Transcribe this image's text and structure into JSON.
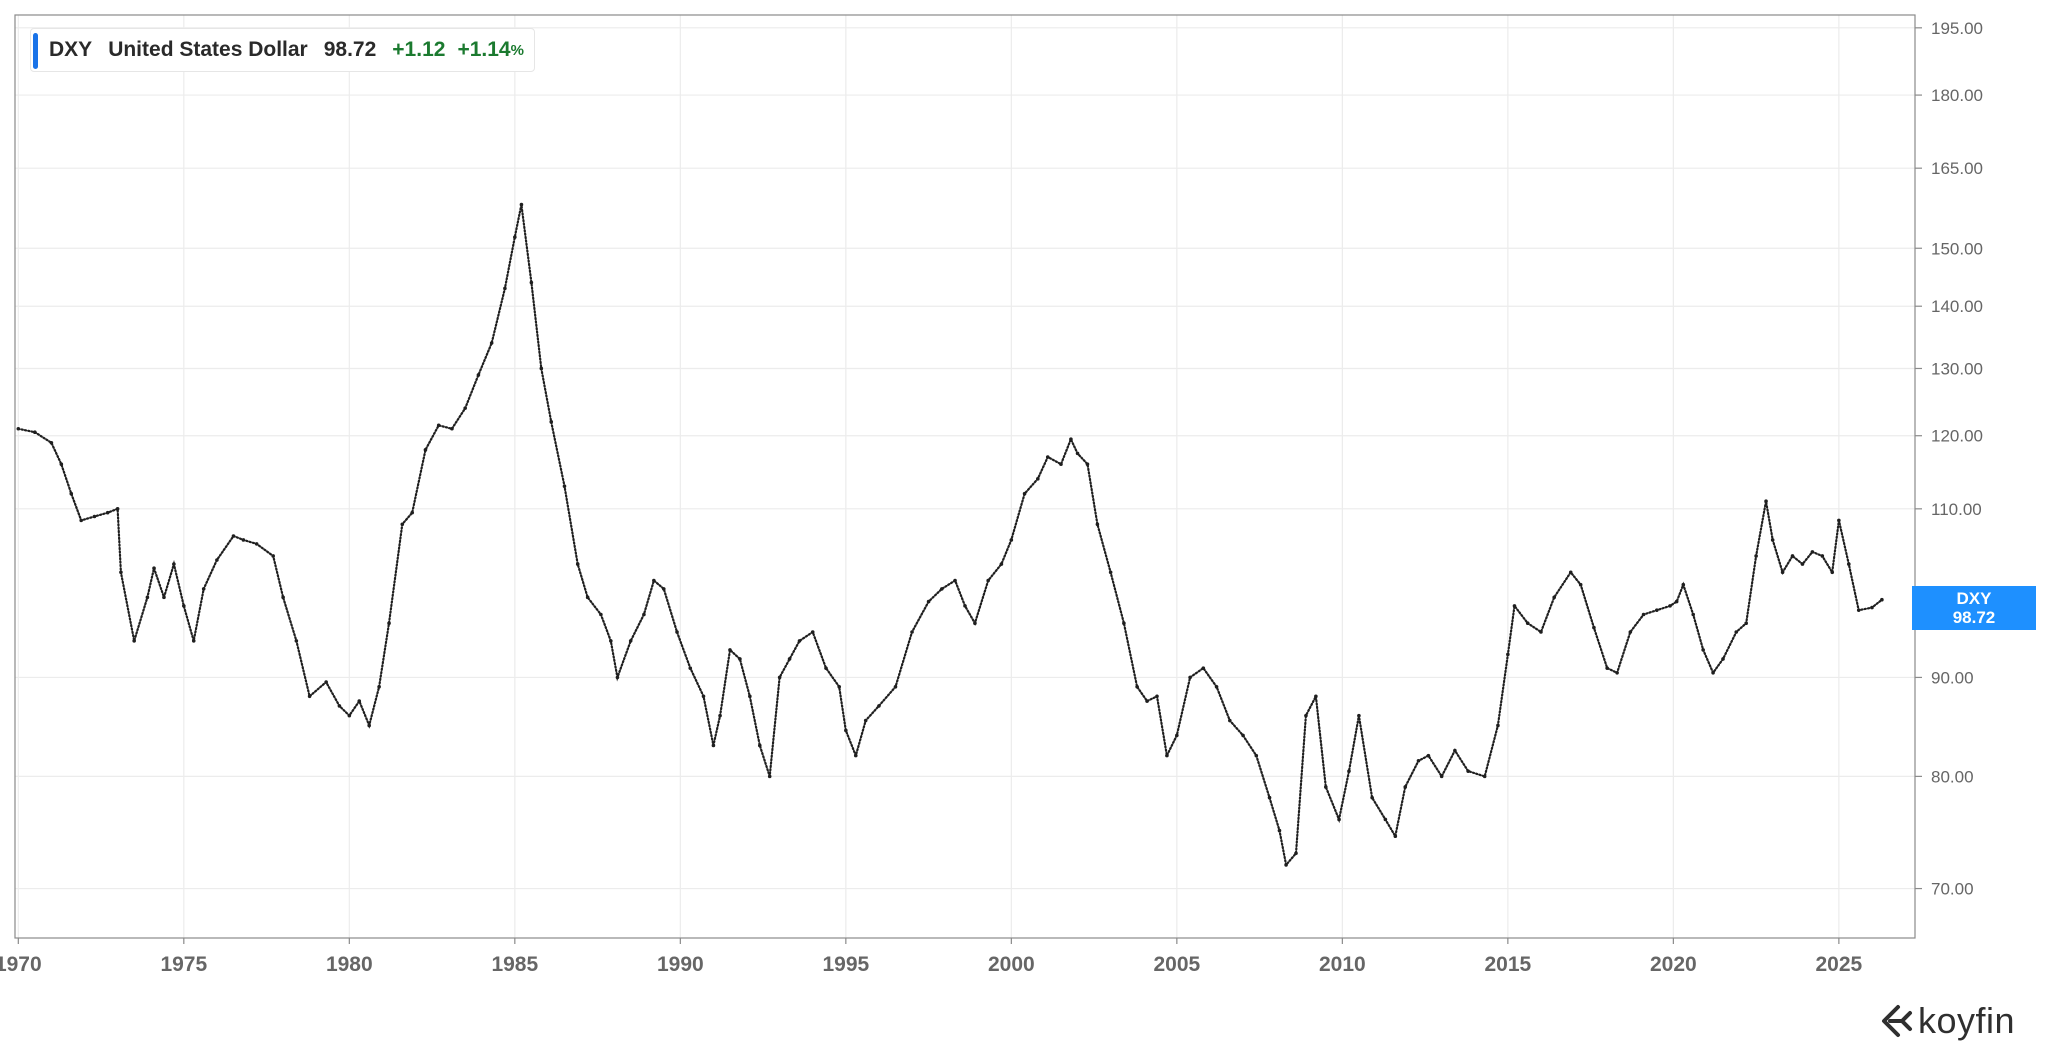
{
  "header": {
    "symbol": "DXY",
    "name": "United States Dollar",
    "price": "98.72",
    "change": "+1.12",
    "change_pct": "+1.14",
    "pct_sign": "%"
  },
  "price_tag": {
    "symbol": "DXY",
    "value": "98.72"
  },
  "logo": {
    "text": "koyfin"
  },
  "colors": {
    "accent": "#1a73e8",
    "positive": "#1b7a2f",
    "price_tag_bg": "#1e90ff",
    "series": "#1f1f1f",
    "grid": "#ececec",
    "axis_text": "#666666"
  },
  "chart_data": {
    "type": "scatter",
    "title": "",
    "xlabel": "",
    "ylabel": "",
    "y_scale": "log",
    "ylim": [
      66,
      198
    ],
    "xlim": [
      1969.9,
      2027.3
    ],
    "y_ticks": [
      "195.00",
      "180.00",
      "165.00",
      "150.00",
      "140.00",
      "130.00",
      "120.00",
      "110.00",
      "90.00",
      "80.00",
      "70.00"
    ],
    "x_ticks": [
      "1970",
      "1975",
      "1980",
      "1985",
      "1990",
      "1995",
      "2000",
      "2005",
      "2010",
      "2015",
      "2020",
      "2025"
    ],
    "grid": true,
    "legend": "top-left",
    "series": [
      {
        "name": "DXY",
        "x": [
          1970.0,
          1970.5,
          1971.0,
          1971.3,
          1971.6,
          1971.9,
          1972.3,
          1972.7,
          1973.0,
          1973.1,
          1973.5,
          1973.9,
          1974.1,
          1974.4,
          1974.7,
          1975.0,
          1975.3,
          1975.6,
          1976.0,
          1976.5,
          1976.8,
          1977.2,
          1977.7,
          1978.0,
          1978.4,
          1978.8,
          1979.3,
          1979.7,
          1980.0,
          1980.3,
          1980.6,
          1980.9,
          1981.2,
          1981.6,
          1981.9,
          1982.3,
          1982.7,
          1983.1,
          1983.5,
          1983.9,
          1984.3,
          1984.7,
          1985.0,
          1985.2,
          1985.5,
          1985.8,
          1986.1,
          1986.5,
          1986.9,
          1987.2,
          1987.6,
          1987.9,
          1988.1,
          1988.5,
          1988.9,
          1989.2,
          1989.5,
          1989.9,
          1990.3,
          1990.7,
          1991.0,
          1991.2,
          1991.5,
          1991.8,
          1992.1,
          1992.4,
          1992.7,
          1993.0,
          1993.3,
          1993.6,
          1994.0,
          1994.4,
          1994.8,
          1995.0,
          1995.3,
          1995.6,
          1996.0,
          1996.5,
          1997.0,
          1997.5,
          1997.9,
          1998.3,
          1998.6,
          1998.9,
          1999.3,
          1999.7,
          2000.0,
          2000.4,
          2000.8,
          2001.1,
          2001.5,
          2001.8,
          2002.0,
          2002.3,
          2002.6,
          2003.0,
          2003.4,
          2003.8,
          2004.1,
          2004.4,
          2004.7,
          2005.0,
          2005.4,
          2005.8,
          2006.2,
          2006.6,
          2007.0,
          2007.4,
          2007.8,
          2008.1,
          2008.3,
          2008.6,
          2008.9,
          2009.2,
          2009.5,
          2009.9,
          2010.2,
          2010.5,
          2010.9,
          2011.3,
          2011.6,
          2011.9,
          2012.3,
          2012.6,
          2013.0,
          2013.4,
          2013.8,
          2014.3,
          2014.7,
          2015.0,
          2015.2,
          2015.6,
          2016.0,
          2016.4,
          2016.9,
          2017.2,
          2017.6,
          2018.0,
          2018.3,
          2018.7,
          2019.1,
          2019.5,
          2019.9,
          2020.1,
          2020.3,
          2020.6,
          2020.9,
          2021.2,
          2021.5,
          2021.9,
          2022.2,
          2022.5,
          2022.8,
          2023.0,
          2023.3,
          2023.6,
          2023.9,
          2024.2,
          2024.5,
          2024.8,
          2025.0,
          2025.3,
          2025.6,
          2026.0,
          2026.3
        ],
        "y": [
          121.0,
          120.5,
          119.0,
          116.0,
          112.0,
          108.5,
          109.0,
          109.5,
          110.0,
          102.0,
          94.0,
          99.0,
          102.5,
          99.0,
          103.0,
          98.0,
          94.0,
          100.0,
          103.5,
          106.5,
          106.0,
          105.5,
          104.0,
          99.0,
          94.0,
          88.0,
          89.5,
          87.0,
          86.0,
          87.5,
          85.0,
          89.0,
          96.0,
          108.0,
          109.5,
          118.0,
          121.5,
          121.0,
          124.0,
          129.0,
          134.0,
          143.0,
          152.0,
          158.0,
          144.0,
          130.0,
          122.0,
          113.0,
          103.0,
          99.0,
          97.0,
          94.0,
          90.0,
          94.0,
          97.0,
          101.0,
          100.0,
          95.0,
          91.0,
          88.0,
          83.0,
          86.0,
          93.0,
          92.0,
          88.0,
          83.0,
          80.0,
          90.0,
          92.0,
          94.0,
          95.0,
          91.0,
          89.0,
          84.5,
          82.0,
          85.5,
          87.0,
          89.0,
          95.0,
          98.5,
          100.0,
          101.0,
          98.0,
          96.0,
          101.0,
          103.0,
          106.0,
          112.0,
          114.0,
          117.0,
          116.0,
          119.5,
          117.5,
          116.0,
          108.0,
          102.0,
          96.0,
          89.0,
          87.5,
          88.0,
          82.0,
          84.0,
          90.0,
          91.0,
          89.0,
          85.5,
          84.0,
          82.0,
          78.0,
          75.0,
          72.0,
          73.0,
          86.0,
          88.0,
          79.0,
          76.0,
          80.5,
          86.0,
          78.0,
          76.0,
          74.5,
          79.0,
          81.5,
          82.0,
          80.0,
          82.5,
          80.5,
          80.0,
          85.0,
          92.5,
          98.0,
          96.0,
          95.0,
          99.0,
          102.0,
          100.5,
          95.5,
          91.0,
          90.5,
          95.0,
          97.0,
          97.5,
          98.0,
          98.5,
          100.5,
          97.0,
          93.0,
          90.5,
          92.0,
          95.0,
          96.0,
          104.0,
          111.0,
          106.0,
          102.0,
          104.0,
          103.0,
          104.5,
          104.0,
          102.0,
          108.5,
          103.0,
          97.5,
          97.8,
          98.72
        ]
      }
    ]
  }
}
